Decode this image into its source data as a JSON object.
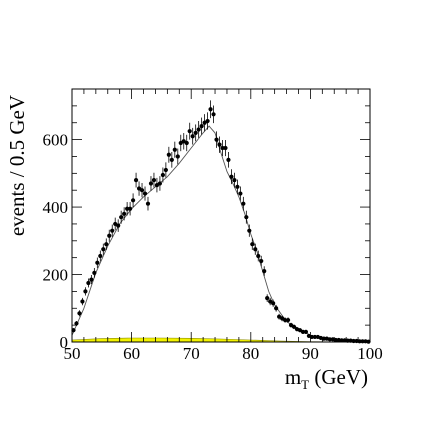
{
  "chart_data": {
    "type": "scatter",
    "title": "",
    "xlabel": "m",
    "xlabel_sub": "T",
    "xlabel_unit": " (GeV)",
    "ylabel": "events / 0.5 GeV",
    "xlim": [
      50,
      100
    ],
    "ylim": [
      0,
      750
    ],
    "xticks": [
      50,
      60,
      70,
      80,
      90,
      100
    ],
    "yticks": [
      0,
      200,
      400,
      600
    ],
    "grid": false,
    "colors": {
      "points": "#000000",
      "fit": "#555555",
      "background_fill": "#f2f200",
      "frame": "#000000"
    },
    "series": [
      {
        "kind": "data_points_with_errors",
        "x": [
          50.25,
          50.75,
          51.25,
          51.75,
          52.25,
          52.75,
          53.25,
          53.75,
          54.25,
          54.75,
          55.25,
          55.75,
          56.25,
          56.75,
          57.25,
          57.75,
          58.25,
          58.75,
          59.25,
          59.75,
          60.25,
          60.75,
          61.25,
          61.75,
          62.25,
          62.75,
          63.25,
          63.75,
          64.25,
          64.75,
          65.25,
          65.75,
          66.25,
          66.75,
          67.25,
          67.75,
          68.25,
          68.75,
          69.25,
          69.75,
          70.25,
          70.75,
          71.25,
          71.75,
          72.25,
          72.75,
          73.25,
          73.75,
          74.25,
          74.75,
          75.25,
          75.75,
          76.25,
          76.75,
          77.25,
          77.75,
          78.25,
          78.75,
          79.25,
          79.75,
          80.25,
          80.75,
          81.25,
          81.75,
          82.25,
          82.75,
          83.25,
          83.75,
          84.25,
          84.75,
          85.25,
          85.75,
          86.25,
          86.75,
          87.25,
          87.75,
          88.25,
          88.75,
          89.25,
          89.75,
          90.25,
          90.75,
          91.25,
          91.75,
          92.25,
          92.75,
          93.25,
          93.75,
          94.25,
          94.75,
          95.25,
          95.75,
          96.25,
          96.75,
          97.25,
          97.75,
          98.25,
          98.75,
          99.25,
          99.75
        ],
        "y": [
          35,
          55,
          85,
          120,
          150,
          175,
          185,
          205,
          235,
          255,
          275,
          290,
          315,
          330,
          350,
          345,
          370,
          380,
          395,
          395,
          420,
          480,
          455,
          450,
          440,
          410,
          470,
          480,
          465,
          470,
          495,
          510,
          555,
          540,
          570,
          550,
          590,
          595,
          590,
          625,
          610,
          620,
          630,
          640,
          650,
          655,
          690,
          675,
          600,
          585,
          575,
          575,
          540,
          490,
          480,
          460,
          440,
          410,
          370,
          330,
          290,
          275,
          255,
          240,
          210,
          130,
          120,
          115,
          100,
          75,
          70,
          65,
          65,
          50,
          45,
          38,
          35,
          30,
          30,
          18,
          15,
          15,
          15,
          12,
          10,
          10,
          8,
          8,
          6,
          6,
          5,
          5,
          4,
          4,
          3,
          3,
          2,
          2,
          2,
          1
        ]
      },
      {
        "kind": "fit_curve",
        "x": [
          50,
          52,
          54,
          56,
          58,
          60,
          62,
          64,
          66,
          68,
          70,
          72,
          73,
          74,
          75,
          76,
          77,
          78,
          79,
          80,
          81,
          82,
          83,
          84,
          86,
          88,
          90,
          92,
          95,
          100
        ],
        "y": [
          20,
          100,
          205,
          285,
          350,
          395,
          430,
          460,
          490,
          530,
          575,
          620,
          640,
          620,
          560,
          505,
          470,
          430,
          380,
          320,
          270,
          210,
          150,
          110,
          60,
          40,
          20,
          12,
          6,
          2
        ]
      },
      {
        "kind": "background",
        "x": [
          50,
          55,
          60,
          65,
          70,
          75,
          80,
          85,
          90,
          100
        ],
        "y": [
          6,
          10,
          12,
          12,
          11,
          9,
          6,
          3,
          1,
          0
        ]
      }
    ]
  }
}
